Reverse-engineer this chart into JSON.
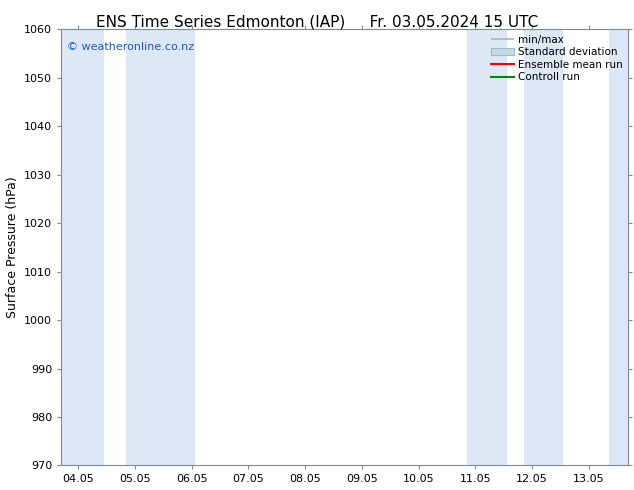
{
  "title_left": "ENS Time Series Edmonton (IAP)",
  "title_right": "Fr. 03.05.2024 15 UTC",
  "ylabel": "Surface Pressure (hPa)",
  "ylim": [
    970,
    1060
  ],
  "yticks": [
    970,
    980,
    990,
    1000,
    1010,
    1020,
    1030,
    1040,
    1050,
    1060
  ],
  "xtick_labels": [
    "04.05",
    "05.05",
    "06.05",
    "07.05",
    "08.05",
    "09.05",
    "10.05",
    "11.05",
    "12.05",
    "13.05"
  ],
  "background_color": "#ffffff",
  "plot_bg_color": "#ffffff",
  "shaded_band_color": "#dce8f5",
  "watermark_text": "© weatheronline.co.nz",
  "watermark_color": "#2255cc",
  "title_fontsize": 11,
  "tick_fontsize": 8,
  "ylabel_fontsize": 9,
  "legend_minmax_color": "#a0b8c8",
  "legend_std_color": "#c8dce8",
  "legend_ensemble_color": "#ff0000",
  "legend_control_color": "#008800"
}
